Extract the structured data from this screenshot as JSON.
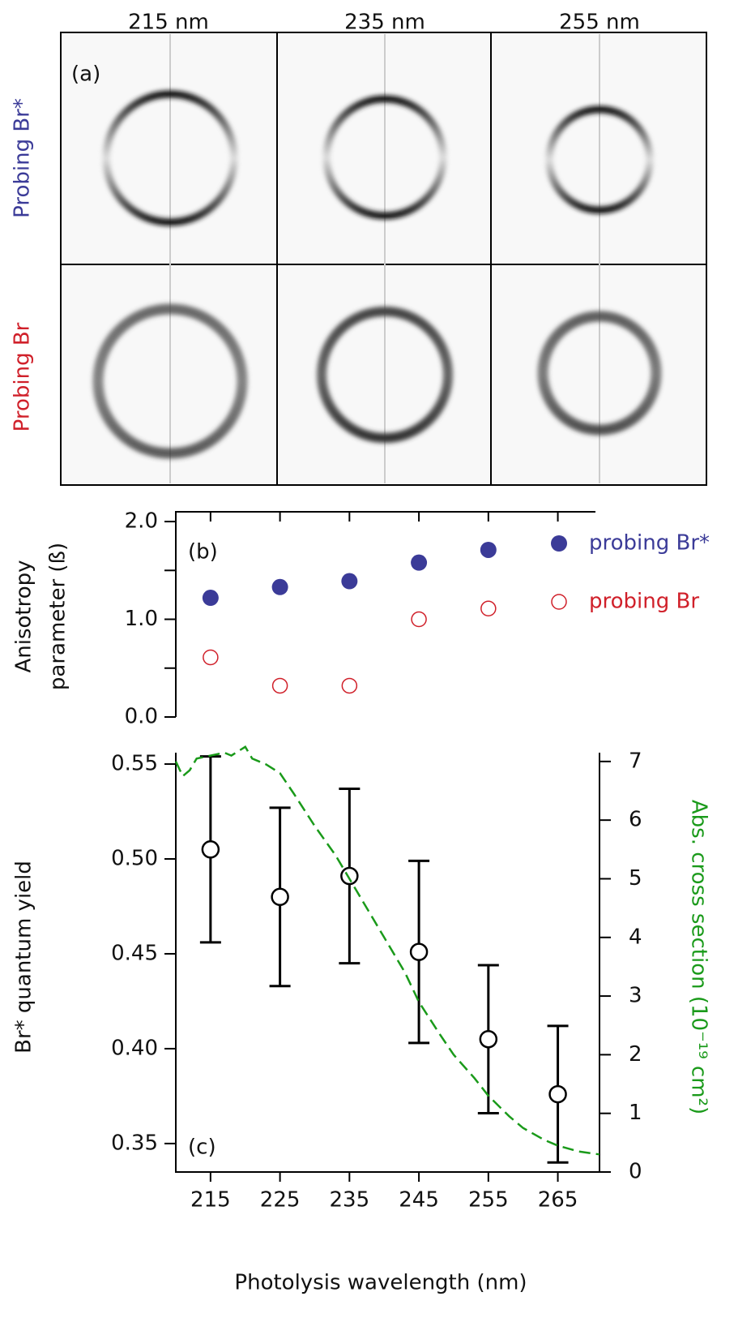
{
  "panel_a": {
    "panel_label": "(a)",
    "column_labels": [
      "215 nm",
      "235 nm",
      "255 nm"
    ],
    "row_labels": [
      "Probing Br*",
      "Probing Br"
    ]
  },
  "chart_data": [
    {
      "type": "scatter",
      "panel_label": "(b)",
      "ylabel": [
        "Anisotropy",
        "parameter (ß)"
      ],
      "xlim": [
        210,
        271
      ],
      "xticks": [
        215,
        225,
        235,
        245,
        255,
        265
      ],
      "ylim": [
        0,
        2.1
      ],
      "yticks": [
        {
          "value": 0,
          "label": "0.0"
        },
        {
          "value": 1,
          "label": "1.0"
        },
        {
          "value": 2,
          "label": "2.0"
        }
      ],
      "yminorticks": [
        0.5,
        1.5
      ],
      "legend": "right",
      "series": [
        {
          "name": "probing Br*",
          "color": "#3b3b98",
          "marker": "filled",
          "x": [
            215,
            225,
            235,
            245,
            255
          ],
          "values": [
            1.22,
            1.33,
            1.39,
            1.58,
            1.71
          ]
        },
        {
          "name": "probing Br",
          "color": "#d0202a",
          "marker": "open",
          "x": [
            215,
            225,
            235,
            245,
            255
          ],
          "values": [
            0.61,
            0.32,
            0.32,
            1.0,
            1.11
          ]
        }
      ]
    },
    {
      "type": "errorbar",
      "panel_label": "(c)",
      "xlabel": "Photolysis wavelength (nm)",
      "ylabel": "Br* quantum yield",
      "y2label": "Abs. cross section (10⁻¹⁹ cm²)",
      "xlim": [
        210,
        271
      ],
      "xticks": [
        215,
        225,
        235,
        245,
        255,
        265
      ],
      "ylim": [
        0.335,
        0.556
      ],
      "yticks": [
        {
          "value": 0.35,
          "label": "0.35"
        },
        {
          "value": 0.4,
          "label": "0.40"
        },
        {
          "value": 0.45,
          "label": "0.45"
        },
        {
          "value": 0.5,
          "label": "0.50"
        },
        {
          "value": 0.55,
          "label": "0.55"
        }
      ],
      "y2lim": [
        0,
        7.15
      ],
      "y2ticks": [
        0,
        1,
        2,
        3,
        4,
        5,
        6,
        7
      ],
      "series": [
        {
          "color": "#000000",
          "x": [
            215,
            225,
            235,
            245,
            255,
            265
          ],
          "values": [
            0.505,
            0.48,
            0.491,
            0.451,
            0.405,
            0.376
          ],
          "errors": [
            0.049,
            0.047,
            0.046,
            0.048,
            0.039,
            0.036
          ]
        },
        {
          "color": "#1a9a1a",
          "axis": "y2",
          "dash": true,
          "x": [
            210,
            211,
            212,
            213,
            215,
            217,
            218,
            220,
            221,
            223,
            225,
            227,
            230,
            233,
            235,
            238,
            240,
            243,
            245,
            248,
            250,
            253,
            255,
            258,
            260,
            263,
            265,
            268,
            271
          ],
          "values": [
            7.0,
            6.75,
            6.85,
            7.05,
            7.1,
            7.15,
            7.1,
            7.25,
            7.05,
            6.95,
            6.8,
            6.45,
            5.9,
            5.4,
            5.0,
            4.4,
            4.0,
            3.4,
            2.9,
            2.35,
            2.0,
            1.6,
            1.3,
            0.95,
            0.75,
            0.55,
            0.45,
            0.35,
            0.3
          ]
        }
      ]
    }
  ]
}
